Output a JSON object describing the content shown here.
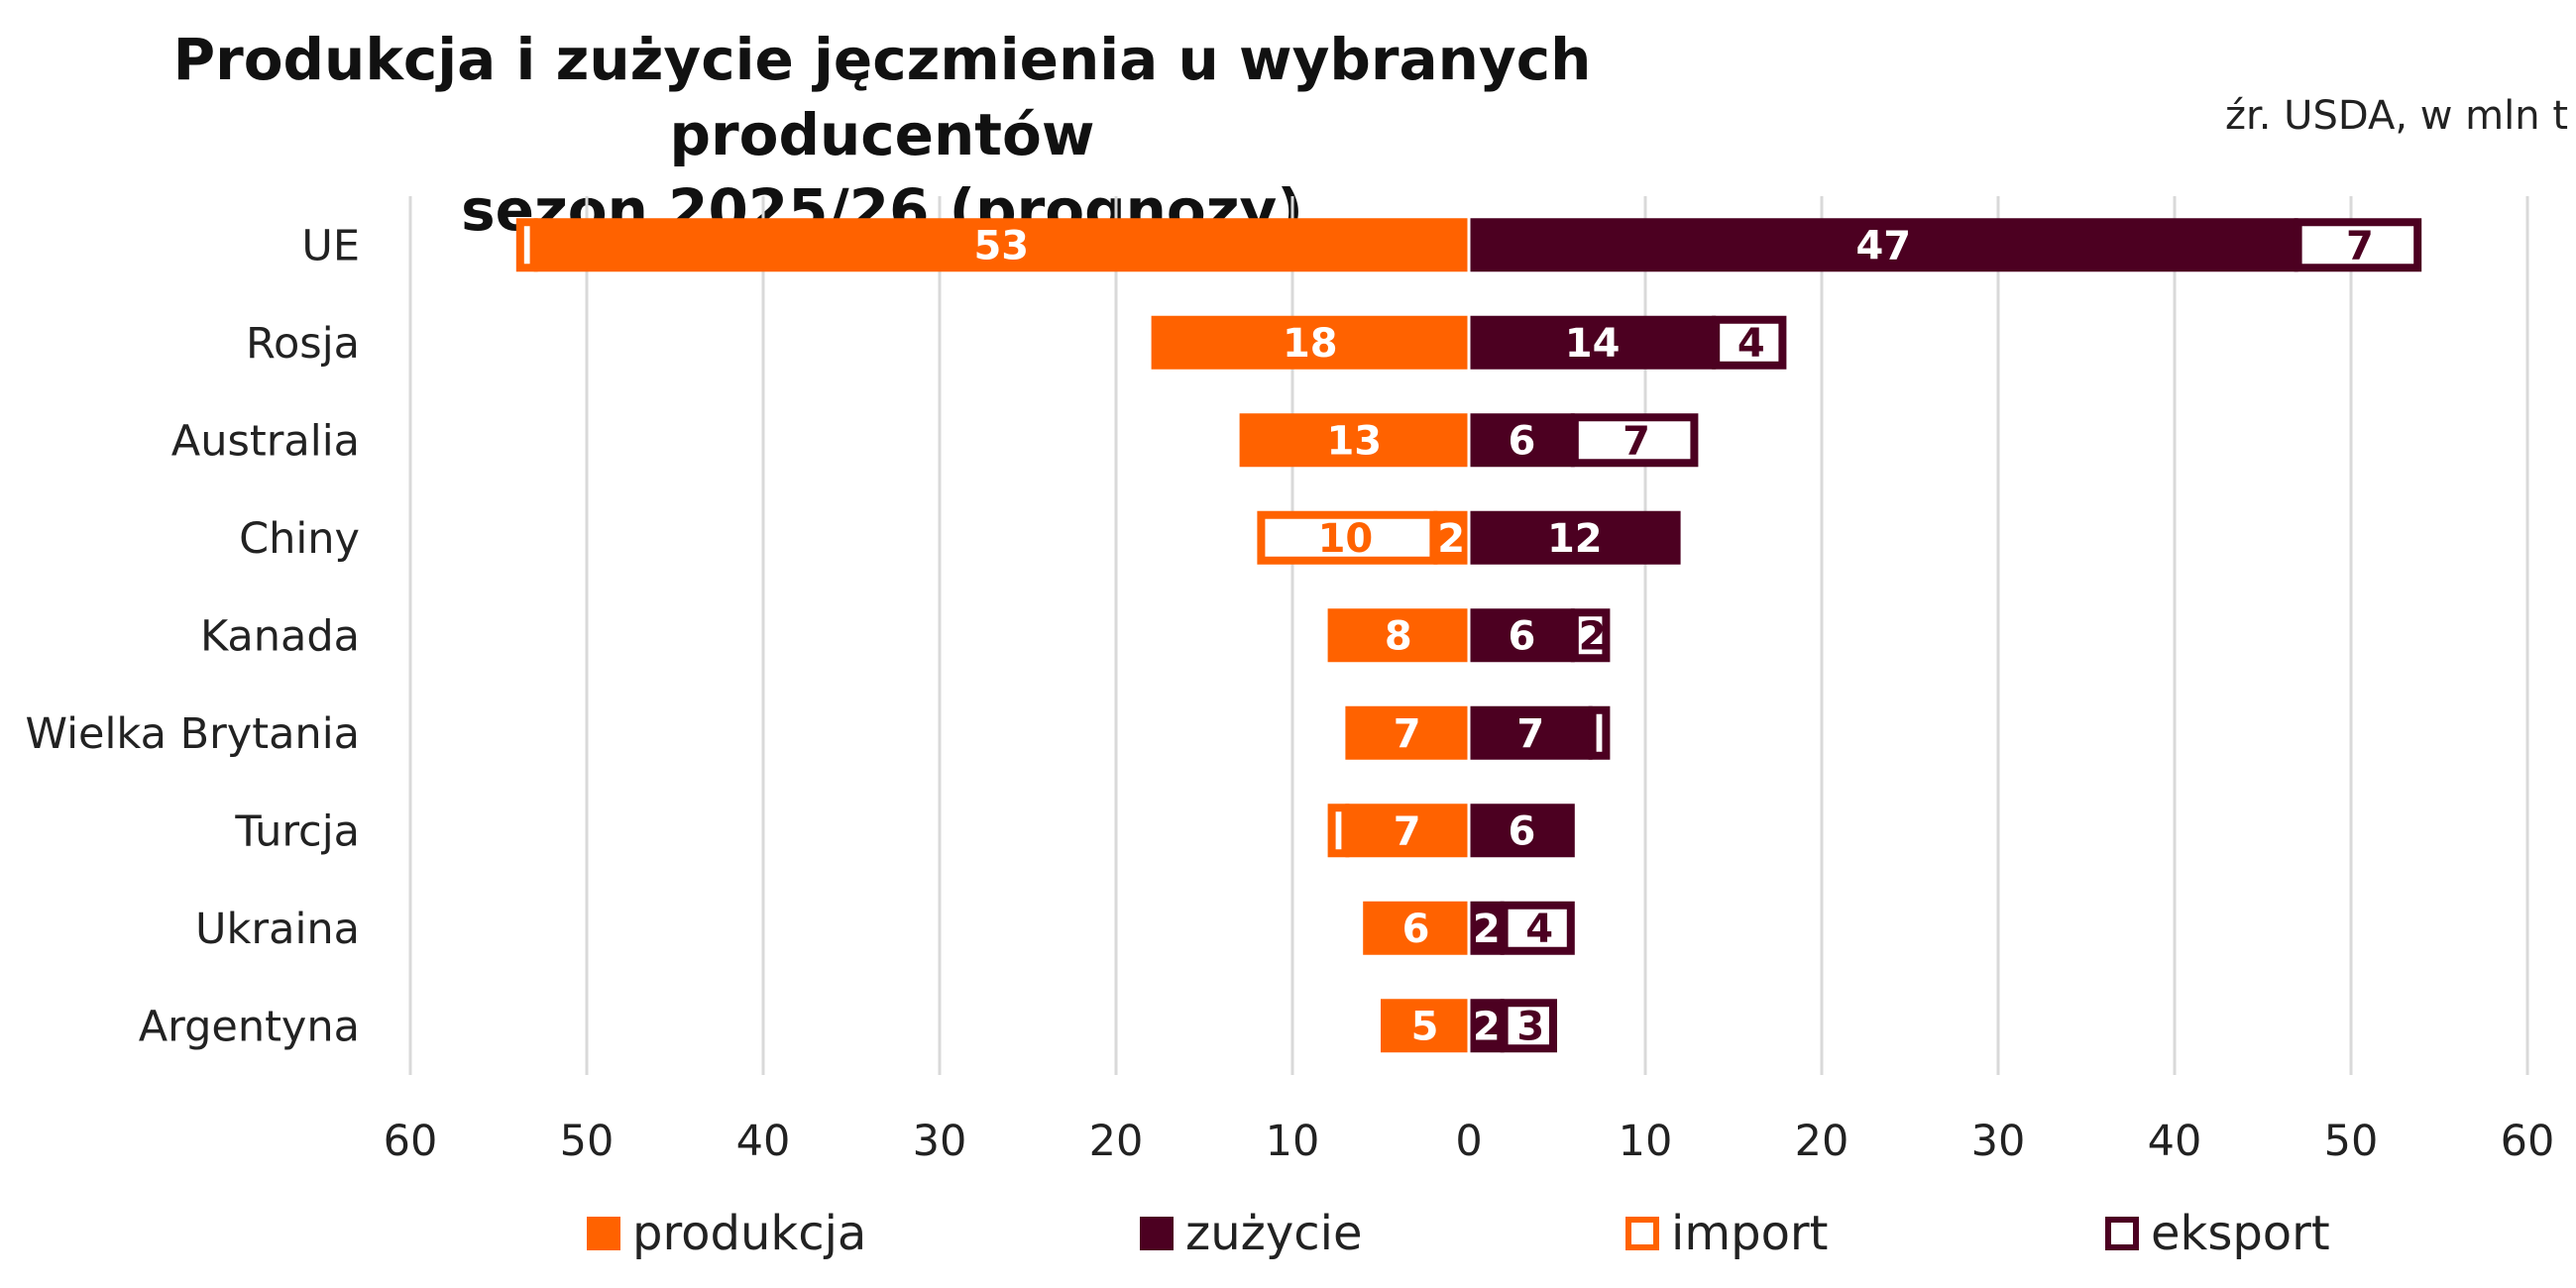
{
  "title_line1": "Produkcja i zużycie jęczmienia u wybranych producentów",
  "title_line2": "sezon 2025/26 (prognozy)",
  "source_note": "źr. USDA, w mln t",
  "legend": {
    "production": "produkcja",
    "consumption": "zużycie",
    "import": "import",
    "export": "eksport"
  },
  "colors": {
    "production": "#FF6200",
    "consumption": "#4C0021",
    "grid": "#D9D9D9",
    "label_on_fill": "#FFFFFF"
  },
  "chart_data": {
    "type": "bar",
    "orientation": "horizontal",
    "xlim": [
      -60,
      60
    ],
    "x_ticks": [
      "60",
      "50",
      "40",
      "30",
      "20",
      "10",
      "0",
      "10",
      "20",
      "30",
      "40",
      "50",
      "60"
    ],
    "grid": true,
    "legend_position": "bottom",
    "categories": [
      "UE",
      "Rosja",
      "Australia",
      "Chiny",
      "Kanada",
      "Wielka Brytania",
      "Turcja",
      "Ukraina",
      "Argentyna"
    ],
    "series": [
      {
        "name": "produkcja",
        "side": "left",
        "values": [
          53,
          18,
          13,
          2,
          8,
          7,
          7,
          6,
          5
        ],
        "labels": [
          "53",
          "18",
          "13",
          "2",
          "8",
          "7",
          "7",
          "6",
          "5"
        ]
      },
      {
        "name": "import",
        "side": "left",
        "values": [
          1,
          0,
          0,
          10,
          0,
          0,
          1,
          0,
          0
        ],
        "labels": [
          "",
          "",
          "",
          "10",
          "",
          "",
          "",
          "",
          ""
        ]
      },
      {
        "name": "zużycie",
        "side": "right",
        "values": [
          47,
          14,
          6,
          12,
          6,
          7,
          6,
          2,
          2
        ],
        "labels": [
          "47",
          "14",
          "6",
          "12",
          "6",
          "7",
          "6",
          "2",
          "2"
        ]
      },
      {
        "name": "eksport",
        "side": "right",
        "values": [
          7,
          4,
          7,
          0,
          2,
          1,
          0,
          4,
          3
        ],
        "labels": [
          "7",
          "4",
          "7",
          "",
          "2",
          "",
          "",
          "4",
          "3"
        ]
      }
    ]
  }
}
